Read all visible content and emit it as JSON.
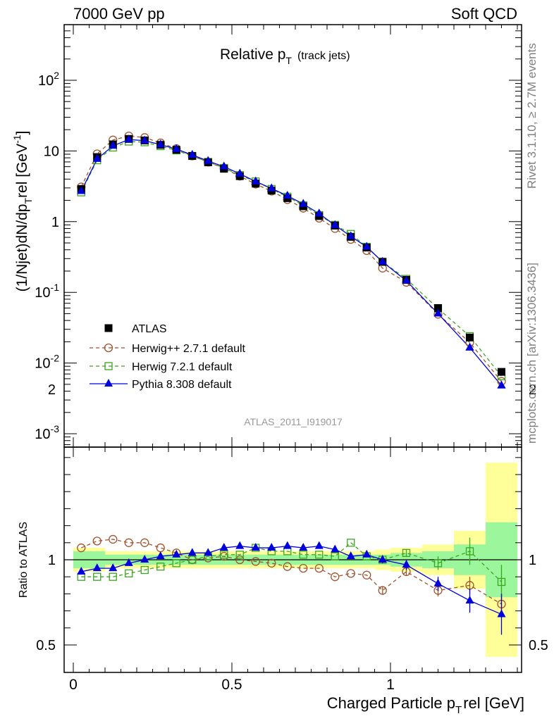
{
  "header": {
    "left": "7000 GeV pp",
    "right": "Soft QCD"
  },
  "side_labels": {
    "rivet": "Rivet 3.1.10, ≥ 2.7M events",
    "mcplots": "mcplots.cern.ch [arXiv:1306.3436]"
  },
  "main_panel": {
    "title_main": "Relative p",
    "title_sub": "T",
    "title_extra": "(track jets)",
    "analysis_id": "ATLAS_2011_I919017",
    "ylabel_parts": [
      "(1/Njet)dN/dp",
      "T",
      "rel [GeV",
      "-1",
      "]"
    ],
    "ytick_labels": [
      {
        "base": "10",
        "exp": "-3",
        "value": 0.001
      },
      {
        "base": "10",
        "exp": "-2",
        "value": 0.01
      },
      {
        "base": "10",
        "exp": "-1",
        "value": 0.1
      },
      {
        "base": "1",
        "exp": "",
        "value": 1
      },
      {
        "base": "10",
        "exp": "",
        "value": 10
      },
      {
        "base": "10",
        "exp": "2",
        "value": 100
      }
    ]
  },
  "ratio_panel": {
    "ylabel": "Ratio to ATLAS",
    "ytick_labels": [
      "0.5",
      "1",
      "2"
    ]
  },
  "xaxis": {
    "label_parts": [
      "Charged Particle p",
      "T",
      "rel [GeV]"
    ],
    "tick_labels": [
      "0",
      "0.5",
      "1"
    ]
  },
  "legend": [
    {
      "label": "ATLAS"
    },
    {
      "label": "Herwig++ 2.7.1 default"
    },
    {
      "label": "Herwig 7.2.1 default"
    },
    {
      "label": "Pythia 8.308 default"
    }
  ],
  "chart_data": {
    "type": "scatter",
    "x_label": "Charged Particle p_T^rel [GeV]",
    "y_label": "(1/Njet)dN/dp_T^rel [GeV^-1]",
    "x_range": [
      -0.03,
      1.42
    ],
    "y_range": [
      0.0006,
      600
    ],
    "y_scale": "log",
    "ratio_range": [
      0.4,
      2.3
    ],
    "legend_position": "lower-left",
    "colors": {
      "atlas": "#000000",
      "herwigpp": "#a0522d",
      "herwig7": "#3aa51f",
      "pythia": "#0000dd",
      "band_inner": "#9cf79c",
      "band_outer": "#ffff99"
    },
    "x": [
      0.025,
      0.075,
      0.125,
      0.175,
      0.225,
      0.275,
      0.325,
      0.375,
      0.425,
      0.475,
      0.525,
      0.575,
      0.625,
      0.675,
      0.725,
      0.775,
      0.825,
      0.875,
      0.925,
      0.975,
      1.05,
      1.15,
      1.25,
      1.35
    ],
    "x_bin_edges": [
      0.0,
      0.05,
      0.1,
      0.15,
      0.2,
      0.25,
      0.3,
      0.35,
      0.4,
      0.45,
      0.5,
      0.55,
      0.6,
      0.65,
      0.7,
      0.75,
      0.8,
      0.85,
      0.9,
      0.95,
      1.0,
      1.1,
      1.2,
      1.3,
      1.4
    ],
    "series": [
      {
        "name": "ATLAS",
        "marker": "square-filled",
        "values": [
          2.9,
          8.2,
          12.4,
          14.8,
          14.1,
          12.2,
          10.4,
          8.5,
          6.9,
          5.6,
          4.4,
          3.45,
          2.75,
          2.15,
          1.65,
          1.2,
          0.88,
          0.61,
          0.43,
          0.27,
          0.15,
          0.06,
          0.023,
          0.0075
        ]
      },
      {
        "name": "Herwig++ 2.7.1 default",
        "marker": "circle-open",
        "style": "dashed",
        "values": [
          3.1,
          9.1,
          14.3,
          16.3,
          15.5,
          13.0,
          10.8,
          8.5,
          6.95,
          5.7,
          4.4,
          3.4,
          2.7,
          2.05,
          1.55,
          1.12,
          0.8,
          0.56,
          0.39,
          0.22,
          0.139,
          0.049,
          0.0195,
          0.0055
        ]
      },
      {
        "name": "Herwig 7.2.1 default",
        "marker": "square-open",
        "style": "dashed",
        "values": [
          2.6,
          7.4,
          11.2,
          13.6,
          13.3,
          11.7,
          10.2,
          8.5,
          7.0,
          5.75,
          4.55,
          3.7,
          2.9,
          2.25,
          1.7,
          1.24,
          0.9,
          0.67,
          0.44,
          0.27,
          0.155,
          0.059,
          0.024,
          0.0065
        ]
      },
      {
        "name": "Pythia 8.308 default",
        "marker": "triangle-filled",
        "style": "solid",
        "values": [
          2.7,
          7.7,
          11.8,
          14.5,
          14.0,
          12.3,
          10.6,
          8.8,
          7.2,
          6.0,
          4.75,
          3.7,
          2.95,
          2.32,
          1.78,
          1.3,
          0.89,
          0.62,
          0.44,
          0.27,
          0.146,
          0.05,
          0.0165,
          0.0048
        ]
      }
    ],
    "ratios": {
      "Herwig++ 2.7.1 default": [
        1.07,
        1.11,
        1.12,
        1.1,
        1.1,
        1.07,
        1.04,
        1.0,
        1.01,
        1.02,
        1.0,
        0.99,
        0.98,
        0.96,
        0.95,
        0.95,
        0.9,
        0.92,
        0.91,
        0.82,
        0.93,
        0.82,
        0.85,
        0.74
      ],
      "Herwig 7.2.1 default": [
        0.9,
        0.9,
        0.9,
        0.92,
        0.94,
        0.96,
        0.98,
        1.0,
        1.02,
        1.03,
        1.03,
        1.07,
        1.05,
        1.05,
        1.03,
        1.03,
        1.02,
        1.1,
        1.02,
        1.0,
        1.04,
        0.98,
        1.05,
        0.87
      ],
      "Pythia 8.308 default": [
        0.93,
        0.95,
        0.95,
        0.98,
        1.0,
        1.02,
        1.03,
        1.04,
        1.04,
        1.07,
        1.08,
        1.07,
        1.07,
        1.08,
        1.07,
        1.08,
        1.06,
        1.02,
        1.03,
        1.0,
        0.97,
        0.86,
        0.76,
        0.68
      ]
    },
    "ratio_errors": {
      "Herwig++ 2.7.1 default": [
        0.01,
        0.01,
        0.01,
        0.01,
        0.01,
        0.01,
        0.01,
        0.01,
        0.01,
        0.01,
        0.01,
        0.01,
        0.01,
        0.01,
        0.01,
        0.01,
        0.01,
        0.01,
        0.01,
        0.025,
        0.025,
        0.035,
        0.05,
        0.06
      ],
      "Herwig 7.2.1 default": [
        0.01,
        0.01,
        0.01,
        0.01,
        0.01,
        0.01,
        0.01,
        0.01,
        0.01,
        0.01,
        0.01,
        0.01,
        0.01,
        0.01,
        0.01,
        0.01,
        0.01,
        0.01,
        0.01,
        0.02,
        0.02,
        0.04,
        0.08,
        0.1
      ],
      "Pythia 8.308 default": [
        0.01,
        0.01,
        0.01,
        0.01,
        0.01,
        0.01,
        0.01,
        0.01,
        0.01,
        0.01,
        0.01,
        0.01,
        0.01,
        0.01,
        0.01,
        0.01,
        0.01,
        0.01,
        0.01,
        0.02,
        0.03,
        0.04,
        0.07,
        0.12
      ]
    },
    "band_outer": [
      0.07,
      0.07,
      0.05,
      0.05,
      0.05,
      0.05,
      0.05,
      0.05,
      0.05,
      0.05,
      0.05,
      0.05,
      0.05,
      0.05,
      0.05,
      0.05,
      0.05,
      0.05,
      0.05,
      0.06,
      0.07,
      0.09,
      0.17,
      0.57
    ],
    "band_inner": [
      0.05,
      0.05,
      0.03,
      0.03,
      0.03,
      0.03,
      0.03,
      0.03,
      0.03,
      0.03,
      0.03,
      0.03,
      0.03,
      0.03,
      0.03,
      0.03,
      0.03,
      0.03,
      0.03,
      0.03,
      0.04,
      0.05,
      0.09,
      0.22
    ]
  }
}
